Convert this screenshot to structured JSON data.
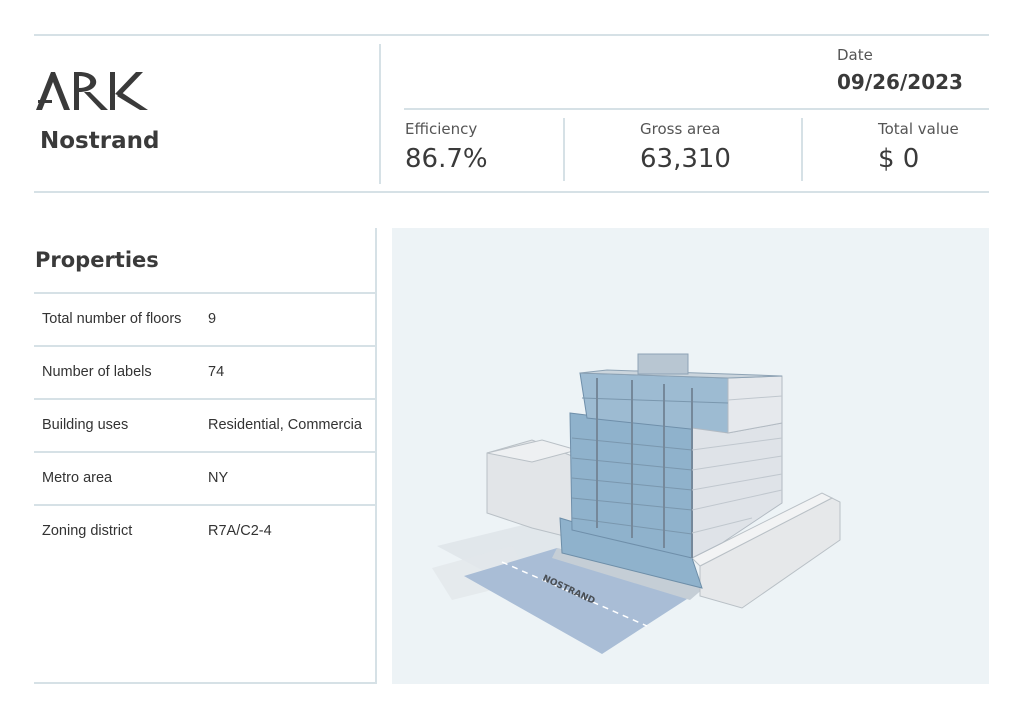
{
  "brand": {
    "logo_text": "ARK",
    "project_name": "Nostrand"
  },
  "header": {
    "date_label": "Date",
    "date_value": "09/26/2023",
    "metrics": [
      {
        "label": "Efficiency",
        "value": "86.7%"
      },
      {
        "label": "Gross area",
        "value": "63,310"
      },
      {
        "label": "Total value",
        "value": "$ 0"
      }
    ]
  },
  "properties": {
    "title": "Properties",
    "rows": [
      {
        "label": "Total number of floors",
        "value": "9"
      },
      {
        "label": "Number of labels",
        "value": "74"
      },
      {
        "label": "Building uses",
        "value": "Residential, Commercia"
      },
      {
        "label": "Metro area",
        "value": "NY"
      },
      {
        "label": "Zoning district",
        "value": "R7A/C2-4"
      }
    ]
  },
  "viewer": {
    "street_label": "NOSTRAND",
    "colors": {
      "background": "#edf3f6",
      "glass": "#8fb2cc",
      "neighbor": "#e6e8ea",
      "street": "#a9bdd6"
    }
  }
}
